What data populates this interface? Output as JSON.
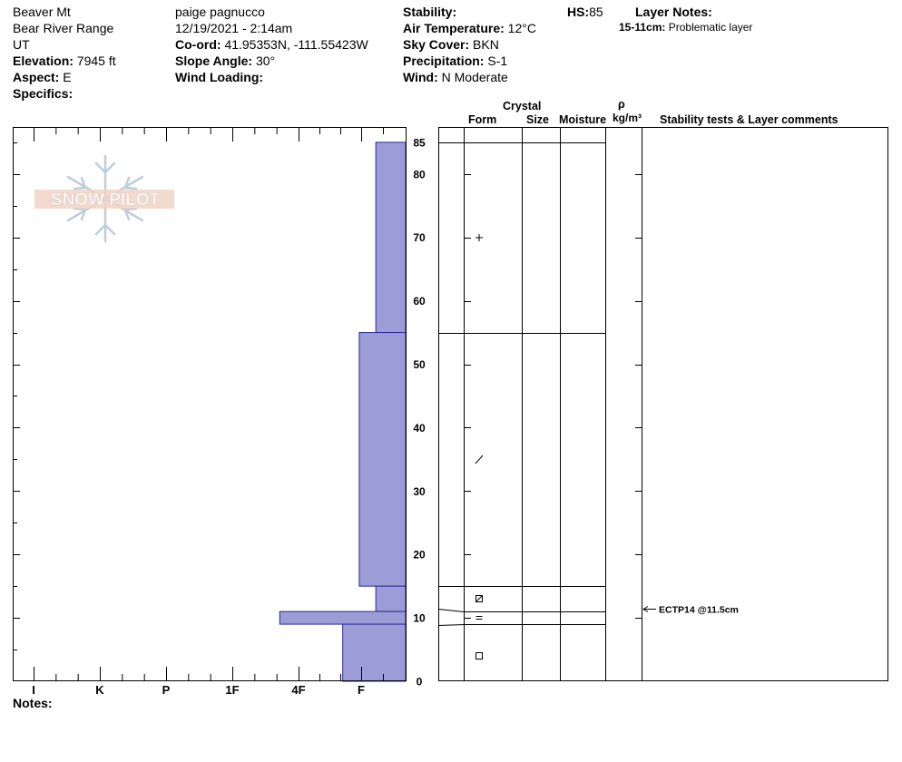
{
  "header": {
    "location": "Beaver Mt",
    "range": "Bear River Range",
    "state": "UT",
    "elevation_label": "Elevation:",
    "elevation_value": "7945 ft",
    "aspect_label": "Aspect:",
    "aspect_value": "E",
    "specifics_label": "Specifics:",
    "observer": "paige pagnucco",
    "datetime": "12/19/2021 - 2:14am",
    "coord_label": "Co-ord:",
    "coord_value": "41.95353N, -111.55423W",
    "slope_label": "Slope Angle:",
    "slope_value": "30°",
    "wind_loading_label": "Wind Loading:",
    "stability_label": "Stability:",
    "air_temp_label": "Air Temperature:",
    "air_temp_value": "12°C",
    "sky_label": "Sky Cover:",
    "sky_value": "BKN",
    "precip_label": "Precipitation:",
    "precip_value": "S-1",
    "wind_label": "Wind:",
    "wind_value": "N Moderate",
    "hs_label": "HS:",
    "hs_value": "85",
    "layer_notes_label": "Layer Notes:",
    "layer_note_range": "15-11cm:",
    "layer_note_text": "Problematic layer"
  },
  "watermark": {
    "text": "SNOW PILOT"
  },
  "columns": {
    "crystal": "Crystal",
    "form": "Form",
    "size": "Size",
    "moisture": "Moisture",
    "rho": "ρ",
    "density_unit": "kg/m³",
    "stability_comments": "Stability tests & Layer comments"
  },
  "notes_label": "Notes:",
  "chart_data": {
    "type": "bar",
    "orientation": "horizontal",
    "ylabel": "",
    "xlabel": "",
    "ylim": [
      0,
      85
    ],
    "y_ticks": [
      0,
      10,
      20,
      30,
      40,
      50,
      60,
      70,
      80,
      85
    ],
    "hardness_ticks": [
      "I",
      "K",
      "P",
      "1F",
      "4F",
      "F"
    ],
    "colors": {
      "bar": "#9c9cd6",
      "bar_stroke": "#2a2a9a"
    },
    "layers": [
      {
        "bottom": 55,
        "top": 85,
        "hardness": 0.45
      },
      {
        "bottom": 15,
        "top": 55,
        "hardness": 0.7
      },
      {
        "bottom": 11,
        "top": 15,
        "hardness": 0.45
      },
      {
        "bottom": 9,
        "top": 11,
        "hardness": 1.9
      },
      {
        "bottom": 0,
        "top": 9,
        "hardness": 0.95
      }
    ],
    "grain_symbols": [
      {
        "depth": 70,
        "symbol": "+"
      },
      {
        "depth": 35,
        "symbol": "/"
      },
      {
        "depth": 13,
        "symbol": "faceted-rounded"
      },
      {
        "depth": 10,
        "symbol": "="
      },
      {
        "depth": 4,
        "symbol": "square"
      }
    ],
    "stability_tests": [
      {
        "depth": 11.5,
        "label": "ECTP14 @11.5cm"
      }
    ]
  }
}
